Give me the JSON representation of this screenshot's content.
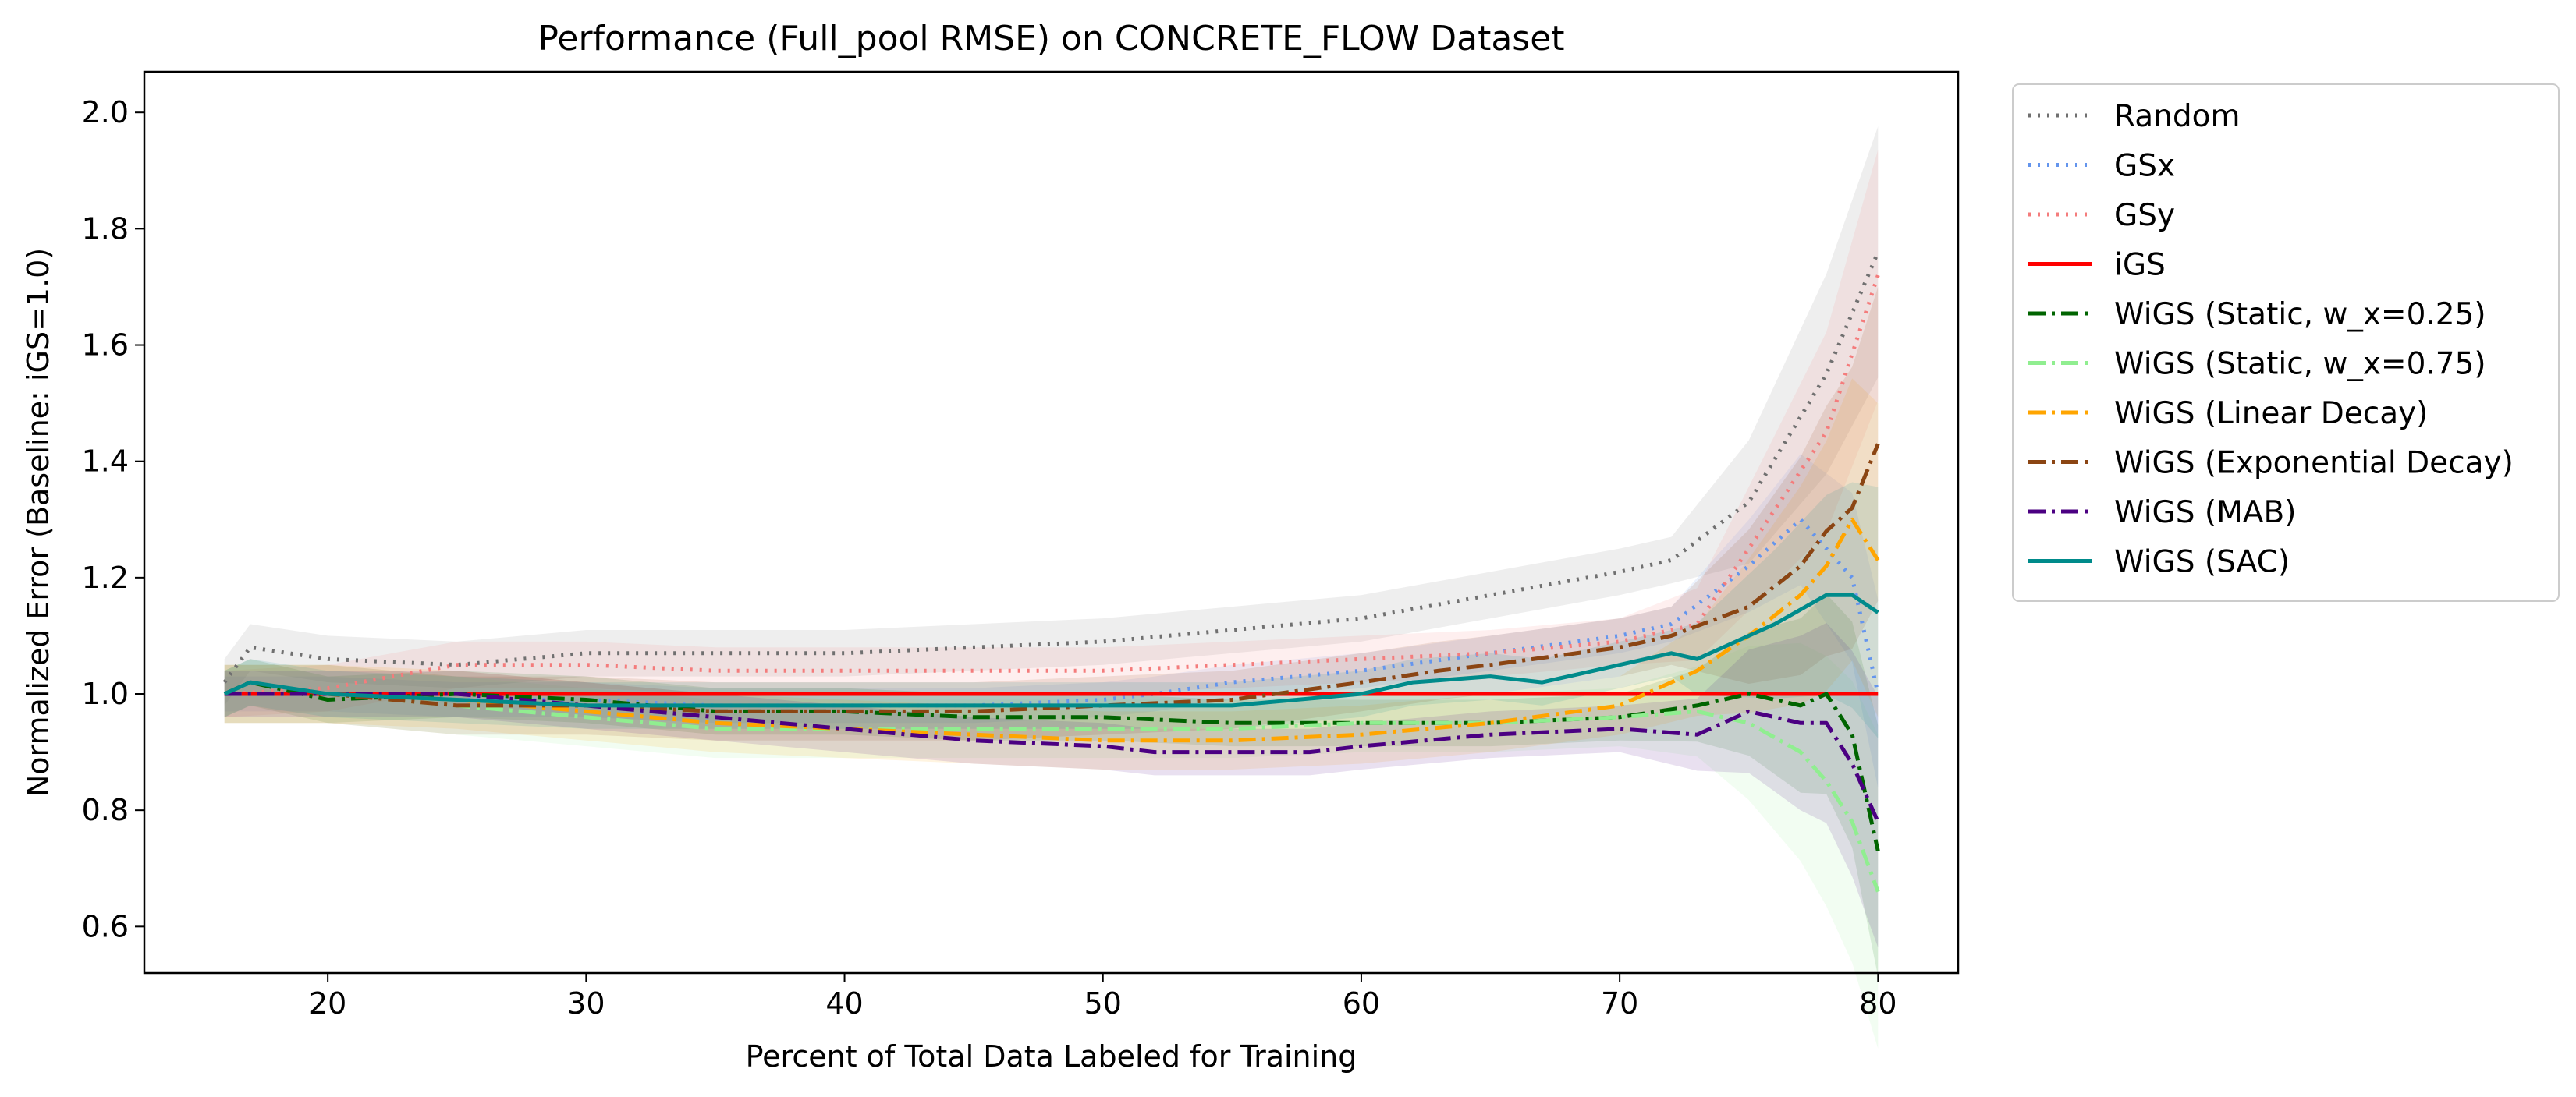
{
  "chart_data": {
    "type": "line",
    "title": "Performance (Full_pool RMSE) on CONCRETE_FLOW Dataset",
    "xlabel": "Percent of Total Data Labeled for Training",
    "ylabel": "Normalized Error (Baseline: iGS=1.0)",
    "xlim": [
      12.9,
      83.1
    ],
    "ylim": [
      0.52,
      2.07
    ],
    "xticks": [
      20,
      30,
      40,
      50,
      60,
      70,
      80
    ],
    "yticks": [
      0.6,
      0.8,
      1.0,
      1.2,
      1.4,
      1.6,
      1.8,
      2.0
    ],
    "xtick_labels": [
      "20",
      "30",
      "40",
      "50",
      "60",
      "70",
      "80"
    ],
    "ytick_labels": [
      "0.6",
      "0.8",
      "1.0",
      "1.2",
      "1.4",
      "1.6",
      "1.8",
      "2.0"
    ],
    "grid": false,
    "legend_position": "outside-right",
    "series": [
      {
        "name": "Random",
        "color": "#707070",
        "style": "dotted",
        "band": 0.04,
        "x": [
          16,
          17,
          20,
          25,
          30,
          35,
          40,
          45,
          50,
          55,
          60,
          65,
          70,
          72,
          75,
          78,
          80
        ],
        "y": [
          1.02,
          1.08,
          1.06,
          1.05,
          1.07,
          1.07,
          1.07,
          1.08,
          1.09,
          1.11,
          1.13,
          1.17,
          1.21,
          1.23,
          1.33,
          1.55,
          1.76
        ]
      },
      {
        "name": "GSx",
        "color": "#6495ed",
        "style": "dotted",
        "band": 0.03,
        "x": [
          16,
          20,
          25,
          30,
          35,
          40,
          45,
          50,
          52,
          55,
          60,
          65,
          70,
          72,
          75,
          77,
          79,
          80
        ],
        "y": [
          1.0,
          1.0,
          0.99,
          0.99,
          0.98,
          0.98,
          0.98,
          0.99,
          1.0,
          1.02,
          1.04,
          1.07,
          1.1,
          1.12,
          1.22,
          1.3,
          1.2,
          1.0
        ]
      },
      {
        "name": "GSy",
        "color": "#f47c7c",
        "style": "dotted",
        "band": 0.04,
        "x": [
          16,
          20,
          25,
          30,
          35,
          40,
          45,
          50,
          55,
          60,
          65,
          70,
          73,
          75,
          78,
          80
        ],
        "y": [
          1.0,
          1.01,
          1.05,
          1.05,
          1.04,
          1.04,
          1.04,
          1.04,
          1.05,
          1.06,
          1.07,
          1.09,
          1.12,
          1.25,
          1.45,
          1.72
        ]
      },
      {
        "name": "iGS",
        "color": "#ff0000",
        "style": "solid",
        "band": 0,
        "x": [
          16,
          80
        ],
        "y": [
          1.0,
          1.0
        ]
      },
      {
        "name": "WiGS (Static, w_x=0.25)",
        "color": "#006400",
        "style": "dashdot",
        "band": 0.04,
        "x": [
          16,
          17,
          20,
          25,
          30,
          35,
          40,
          45,
          50,
          55,
          60,
          65,
          70,
          73,
          75,
          77,
          78,
          79,
          80
        ],
        "y": [
          1.0,
          1.02,
          0.99,
          1.0,
          0.99,
          0.97,
          0.97,
          0.96,
          0.96,
          0.95,
          0.95,
          0.95,
          0.96,
          0.98,
          1.0,
          0.98,
          1.0,
          0.93,
          0.73
        ]
      },
      {
        "name": "WiGS (Static, w_x=0.75)",
        "color": "#90ee90",
        "style": "dashdot",
        "band": 0.05,
        "x": [
          16,
          20,
          25,
          30,
          35,
          40,
          45,
          50,
          55,
          60,
          65,
          70,
          73,
          75,
          77,
          78,
          79,
          80
        ],
        "y": [
          1.0,
          1.0,
          0.98,
          0.96,
          0.94,
          0.94,
          0.94,
          0.94,
          0.94,
          0.95,
          0.95,
          0.96,
          0.97,
          0.95,
          0.9,
          0.85,
          0.78,
          0.66
        ]
      },
      {
        "name": "WiGS (Linear Decay)",
        "color": "#ffa500",
        "style": "dashdot",
        "band": 0.05,
        "x": [
          16,
          20,
          25,
          30,
          35,
          40,
          45,
          50,
          55,
          60,
          65,
          70,
          73,
          75,
          77,
          78,
          79,
          80
        ],
        "y": [
          1.0,
          1.0,
          0.99,
          0.97,
          0.95,
          0.94,
          0.93,
          0.92,
          0.92,
          0.93,
          0.95,
          0.98,
          1.04,
          1.1,
          1.17,
          1.22,
          1.3,
          1.23
        ]
      },
      {
        "name": "WiGS (Exponential Decay)",
        "color": "#8b4513",
        "style": "dashdot",
        "band": 0.05,
        "x": [
          16,
          20,
          25,
          30,
          35,
          40,
          45,
          50,
          55,
          60,
          63,
          65,
          70,
          72,
          75,
          77,
          78,
          79,
          80
        ],
        "y": [
          1.0,
          1.0,
          0.98,
          0.98,
          0.97,
          0.97,
          0.97,
          0.98,
          0.99,
          1.02,
          1.04,
          1.05,
          1.08,
          1.1,
          1.15,
          1.22,
          1.28,
          1.32,
          1.43
        ]
      },
      {
        "name": "WiGS (MAB)",
        "color": "#4b0082",
        "style": "dashdot",
        "band": 0.04,
        "x": [
          16,
          20,
          25,
          30,
          35,
          40,
          45,
          50,
          52,
          55,
          58,
          60,
          65,
          70,
          73,
          75,
          76,
          77,
          78,
          79,
          80
        ],
        "y": [
          1.0,
          1.0,
          1.0,
          0.98,
          0.96,
          0.94,
          0.92,
          0.91,
          0.9,
          0.9,
          0.9,
          0.91,
          0.93,
          0.94,
          0.93,
          0.97,
          0.96,
          0.95,
          0.95,
          0.88,
          0.78
        ]
      },
      {
        "name": "WiGS (SAC)",
        "color": "#008b8b",
        "style": "solid",
        "band": 0.04,
        "x": [
          16,
          17,
          20,
          25,
          30,
          35,
          40,
          45,
          50,
          55,
          60,
          62,
          65,
          67,
          70,
          72,
          73,
          75,
          76,
          78,
          79,
          80
        ],
        "y": [
          1.0,
          1.02,
          1.0,
          0.99,
          0.98,
          0.98,
          0.98,
          0.98,
          0.98,
          0.98,
          1.0,
          1.02,
          1.03,
          1.02,
          1.05,
          1.07,
          1.06,
          1.1,
          1.12,
          1.17,
          1.17,
          1.14
        ]
      }
    ]
  }
}
